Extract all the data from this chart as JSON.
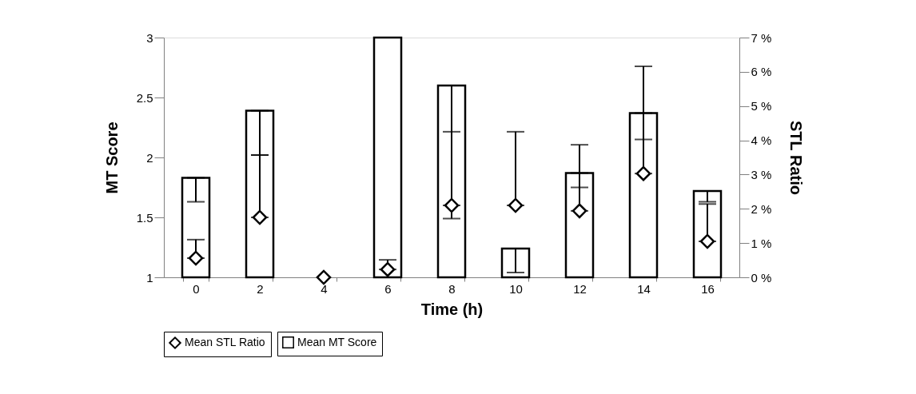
{
  "chart_data": {
    "type": "bar",
    "xlabel": "Time (h)",
    "ylabel": "MT Score",
    "y2label": "STL Ratio",
    "categories": [
      "0",
      "2",
      "4",
      "6",
      "8",
      "10",
      "12",
      "14",
      "16"
    ],
    "series": [
      {
        "name": "Mean MT Score",
        "color": "#ffffff",
        "values": [
          1.83,
          2.39,
          null,
          3.0,
          2.6,
          1.24,
          1.87,
          2.37,
          1.72
        ],
        "errors": [
          [
            1.63,
            1.83
          ],
          [
            2.02,
            2.39
          ],
          null,
          null,
          [
            1.49,
            2.6
          ],
          [
            1.04,
            1.24
          ],
          [
            1.75,
            1.87
          ],
          [
            2.15,
            2.37
          ],
          [
            1.63,
            1.72
          ]
        ]
      },
      {
        "name": "Mean STL Ratio",
        "type": "scatter",
        "axis": "y2",
        "marker": "diamond",
        "color": "#000000",
        "values": [
          0.56,
          1.75,
          0,
          0.23,
          2.1,
          2.1,
          1.94,
          3.03,
          1.05
        ],
        "errors": [
          [
            0.56,
            1.1
          ],
          [
            1.75,
            3.57
          ],
          null,
          [
            0.23,
            0.51
          ],
          [
            2.1,
            4.25
          ],
          [
            2.1,
            4.25
          ],
          [
            1.94,
            3.87
          ],
          [
            3.03,
            6.16
          ],
          [
            1.05,
            2.14
          ]
        ]
      }
    ],
    "ylim": [
      1,
      3
    ],
    "yticks": [
      1,
      1.5,
      2,
      2.5,
      3
    ],
    "y2lim": [
      0,
      7
    ],
    "y2ticks": [
      {
        "value": 0,
        "label": "0 %"
      },
      {
        "value": 1,
        "label": "1 %"
      },
      {
        "value": 2,
        "label": "2 %"
      },
      {
        "value": 3,
        "label": "3 %"
      },
      {
        "value": 4,
        "label": "4 %"
      },
      {
        "value": 5,
        "label": "5 %"
      },
      {
        "value": 6,
        "label": "6 %"
      },
      {
        "value": 7,
        "label": "7 %"
      }
    ],
    "legend": "bottom",
    "grid": false
  }
}
